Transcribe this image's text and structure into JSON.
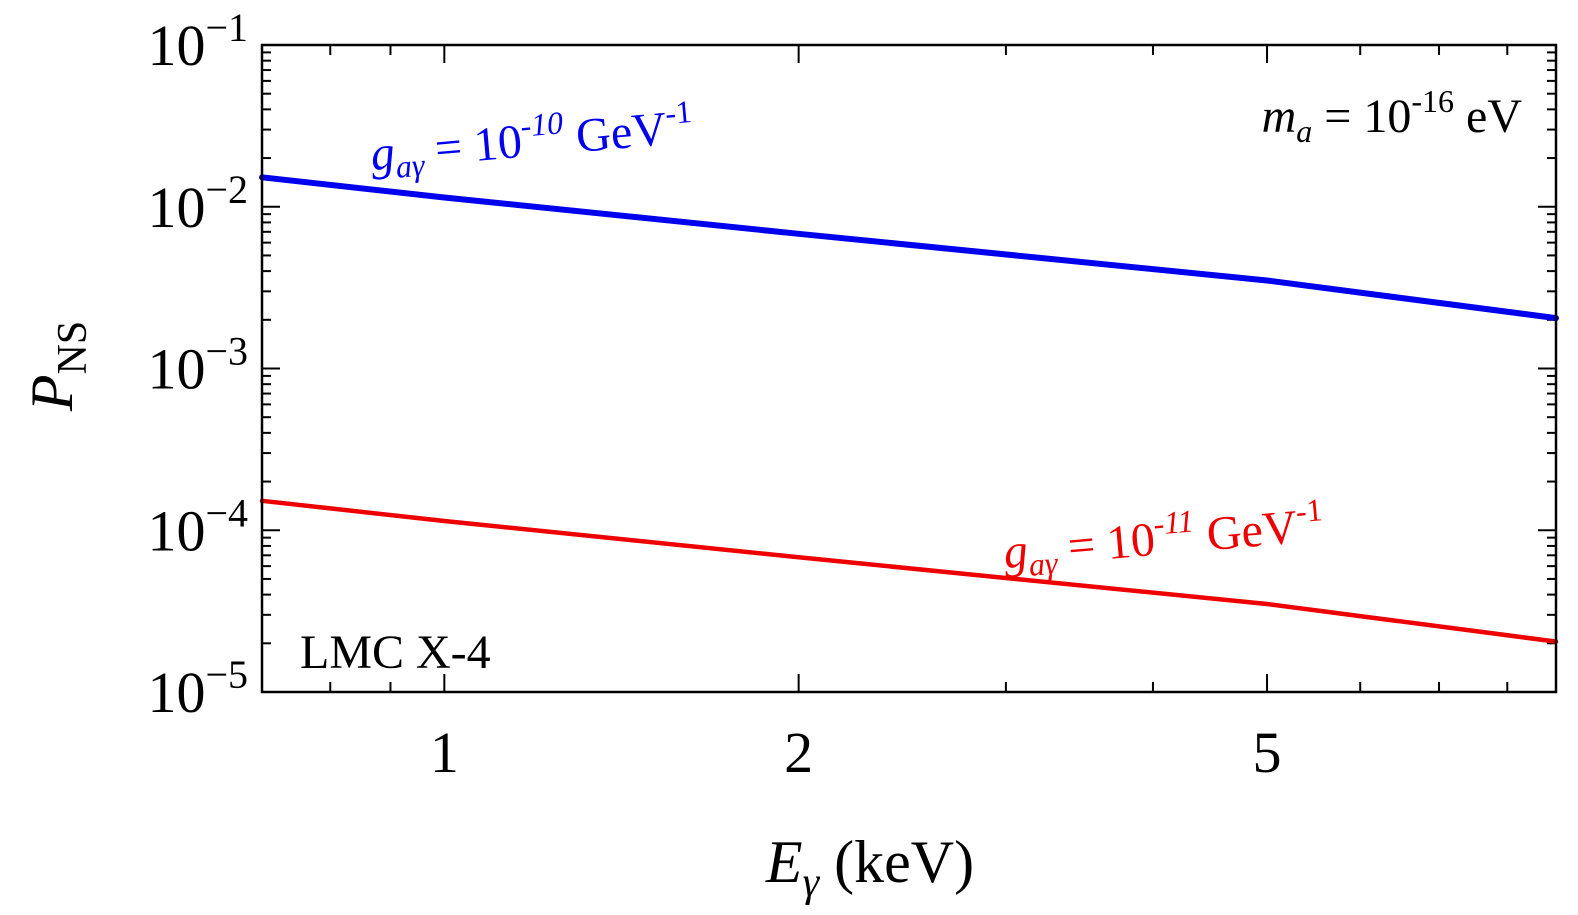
{
  "chart_data": {
    "type": "line",
    "xlabel": {
      "var": "E",
      "sub": "γ",
      "unit": "(keV)"
    },
    "ylabel": {
      "var": "P",
      "sub": "NS"
    },
    "xscale": "log",
    "yscale": "log",
    "xlim": [
      0.7,
      8.8
    ],
    "ylim": [
      1e-05,
      0.1
    ],
    "xticks": [
      {
        "value": 1,
        "label": "1"
      },
      {
        "value": 2,
        "label": "2"
      },
      {
        "value": 5,
        "label": "5"
      }
    ],
    "yticks": [
      {
        "value": 1e-05,
        "base": "10",
        "exp": "−5"
      },
      {
        "value": 0.0001,
        "base": "10",
        "exp": "−4"
      },
      {
        "value": 0.001,
        "base": "10",
        "exp": "−3"
      },
      {
        "value": 0.01,
        "base": "10",
        "exp": "−2"
      },
      {
        "value": 0.1,
        "base": "10",
        "exp": "−1"
      }
    ],
    "series": [
      {
        "color": "#0000ee",
        "x": [
          0.7,
          1,
          2,
          5,
          8.8
        ],
        "y": [
          0.0152,
          0.0114,
          0.0068,
          0.0035,
          0.00205
        ],
        "label": {
          "g": "g",
          "sub": "aγ",
          "mid": " = 10",
          "exp": "-10",
          "unit": " GeV",
          "unit_exp": "-1"
        }
      },
      {
        "color": "#ee0000",
        "x": [
          0.7,
          1,
          2,
          5,
          8.8
        ],
        "y": [
          0.000152,
          0.000114,
          6.8e-05,
          3.5e-05,
          2.05e-05
        ],
        "label": {
          "g": "g",
          "sub": "aγ",
          "mid": " = 10",
          "exp": "-11",
          "unit": " GeV",
          "unit_exp": "-1"
        }
      }
    ],
    "annotations": {
      "mass": {
        "var": "m",
        "sub": "a",
        "mid": " = 10",
        "exp": "-16",
        "unit": " eV"
      },
      "source": "LMC X-4"
    },
    "grid": false
  }
}
